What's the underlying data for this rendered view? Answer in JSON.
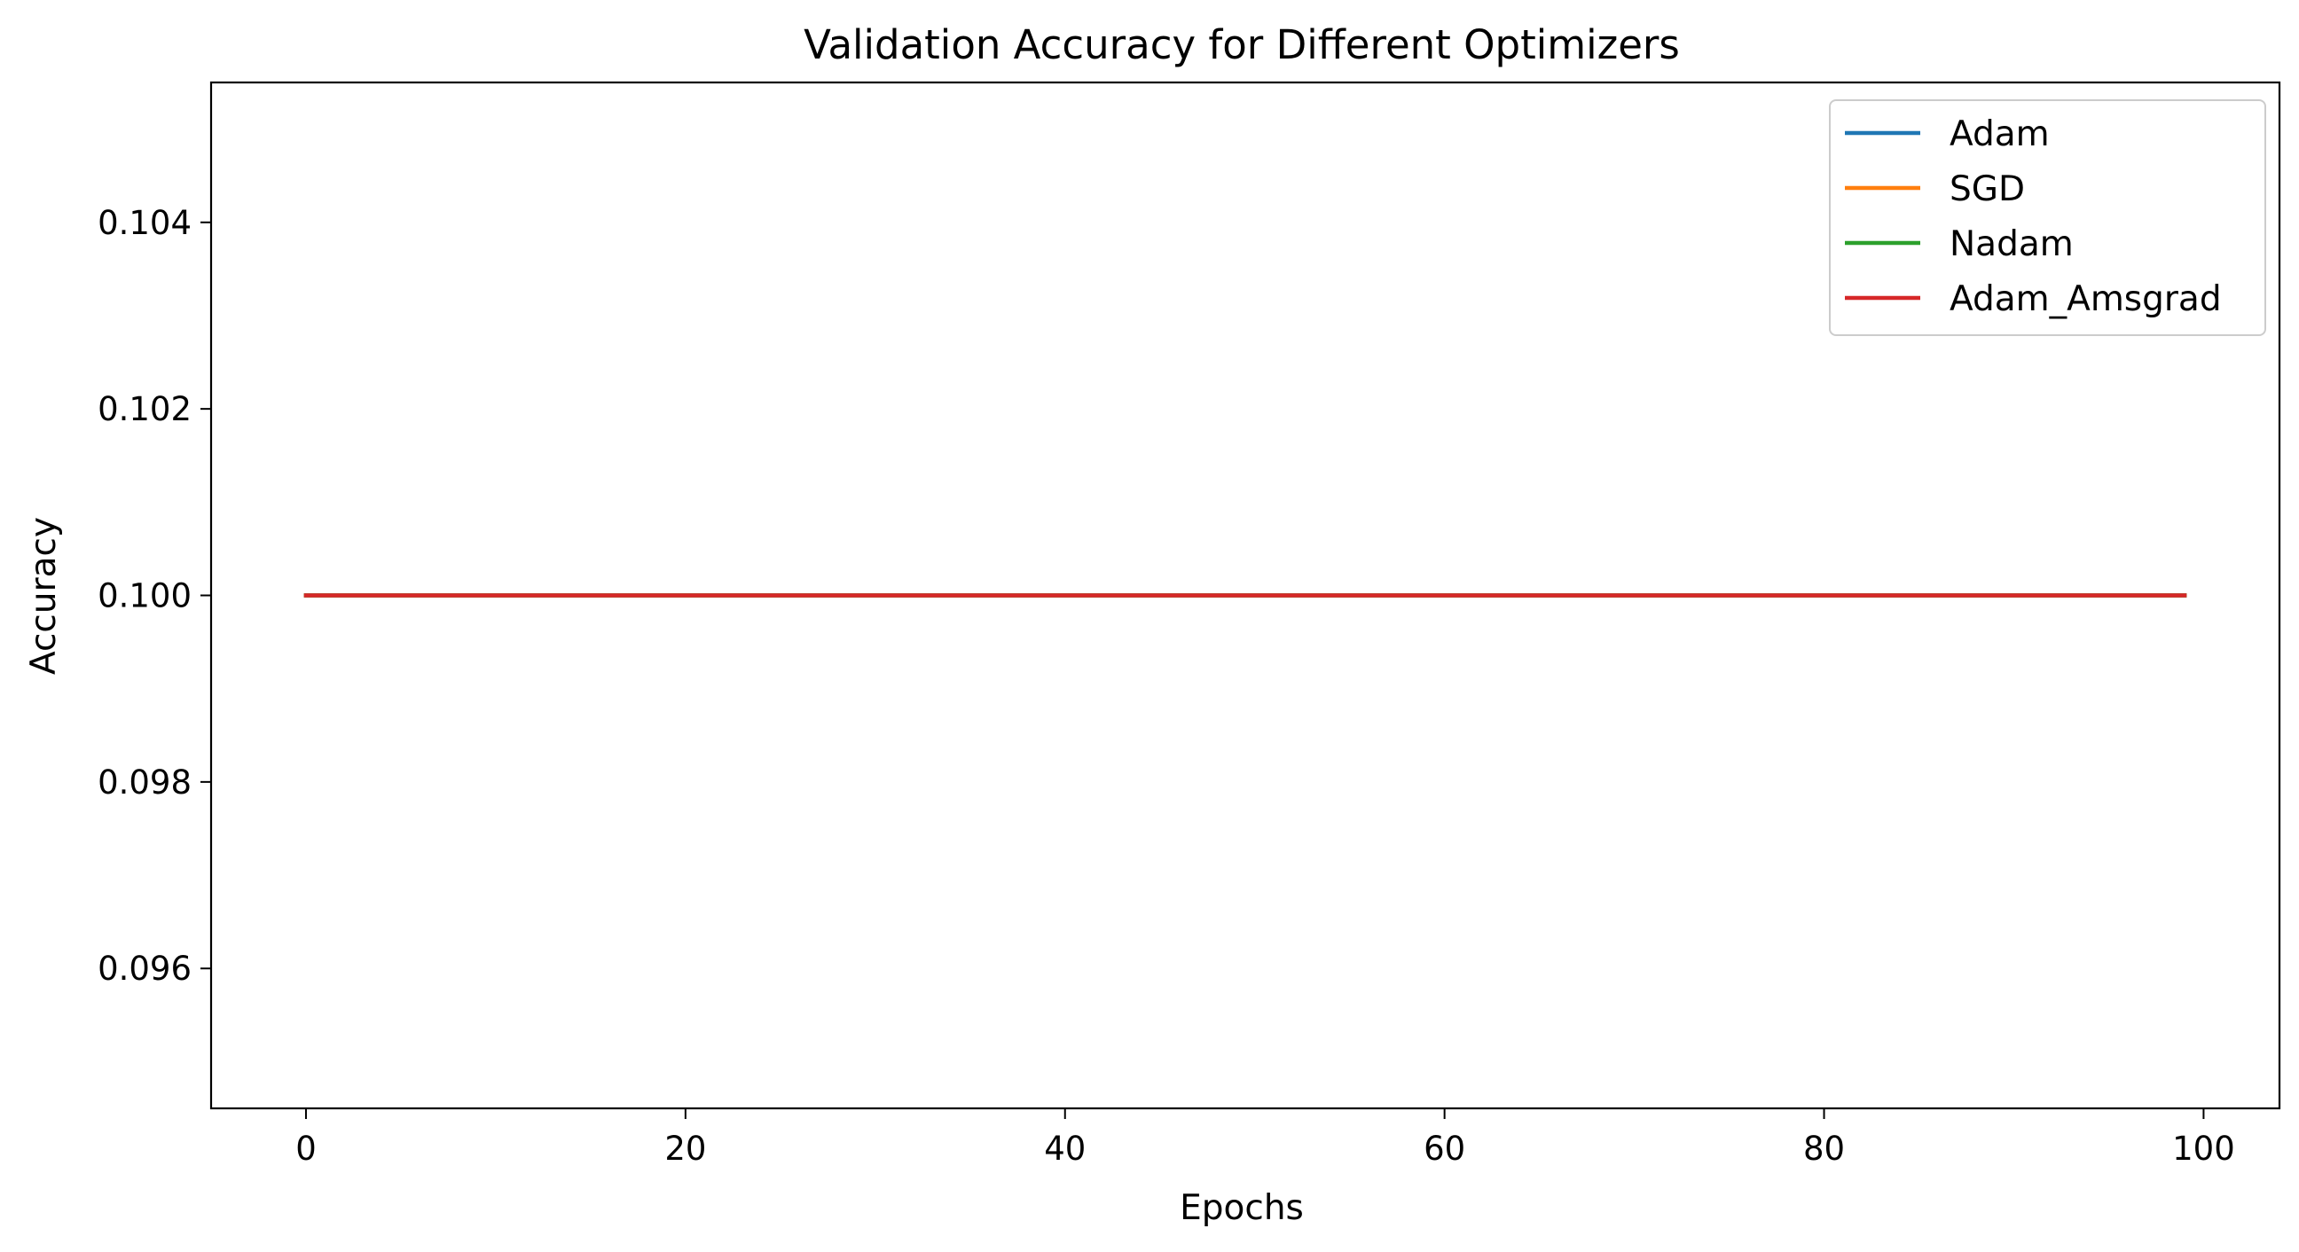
{
  "chart_data": {
    "type": "line",
    "title": "Validation Accuracy for Different Optimizers",
    "xlabel": "Epochs",
    "ylabel": "Accuracy",
    "xlim": [
      -5,
      104
    ],
    "ylim": [
      0.0945,
      0.1055
    ],
    "x_ticks": [
      0,
      20,
      40,
      60,
      80,
      100
    ],
    "x_tick_labels": [
      "0",
      "20",
      "40",
      "60",
      "80",
      "100"
    ],
    "y_ticks": [
      0.096,
      0.098,
      0.1,
      0.102,
      0.104
    ],
    "y_tick_labels": [
      "0.096",
      "0.098",
      "0.100",
      "0.102",
      "0.104"
    ],
    "grid": false,
    "legend_position": "top-right",
    "series": [
      {
        "name": "Adam",
        "color": "#1f77b4",
        "x_start": 0,
        "x_end": 99,
        "values": 0.1
      },
      {
        "name": "SGD",
        "color": "#ff7f0e",
        "x_start": 0,
        "x_end": 99,
        "values": 0.1
      },
      {
        "name": "Nadam",
        "color": "#2ca02c",
        "x_start": 0,
        "x_end": 99,
        "values": 0.1
      },
      {
        "name": "Adam_Amsgrad",
        "color": "#d62728",
        "x_start": 0,
        "x_end": 99,
        "values": 0.1
      }
    ]
  }
}
